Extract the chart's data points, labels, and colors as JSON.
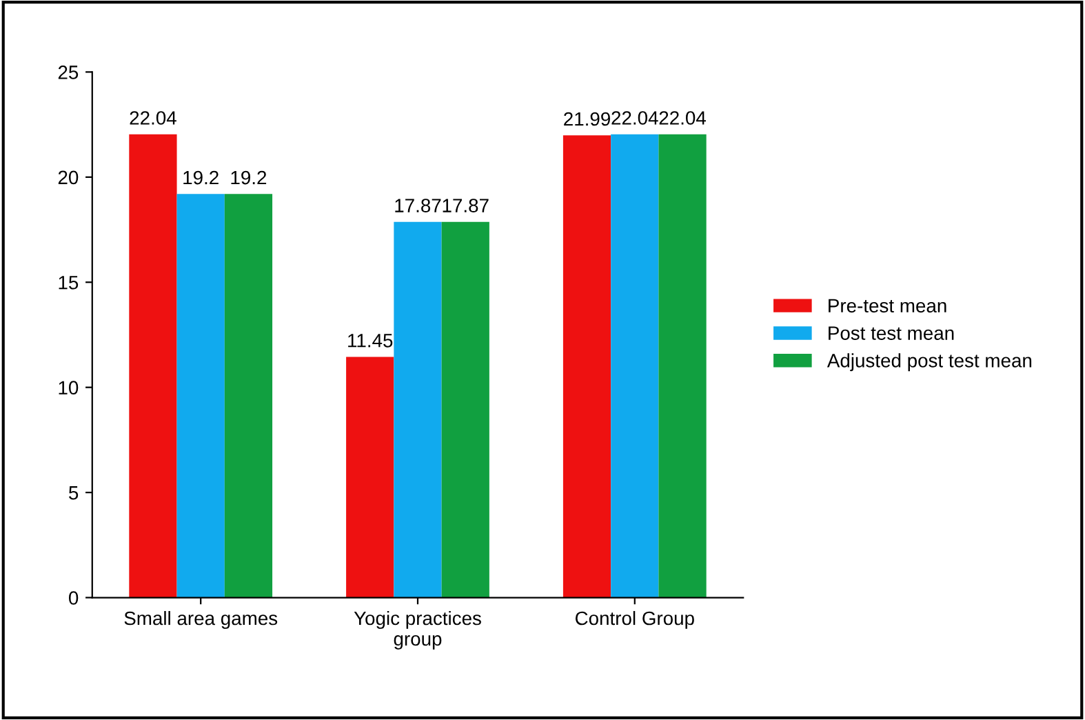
{
  "chart_data": {
    "type": "bar",
    "categories": [
      "Small area games",
      "Yogic practices\ngroup",
      "Control Group"
    ],
    "series": [
      {
        "name": "Pre-test mean",
        "color": "#ee1111",
        "values": [
          22.04,
          11.45,
          21.99
        ]
      },
      {
        "name": "Post test mean",
        "color": "#11aaee",
        "values": [
          19.2,
          17.87,
          22.04
        ]
      },
      {
        "name": "Adjusted post test mean",
        "color": "#11a040",
        "values": [
          19.2,
          17.87,
          22.04
        ]
      }
    ],
    "ylim": [
      0,
      25
    ],
    "yticks": [
      0,
      5,
      10,
      15,
      20,
      25
    ],
    "data_labels": true,
    "legend": "right",
    "grid": false
  }
}
